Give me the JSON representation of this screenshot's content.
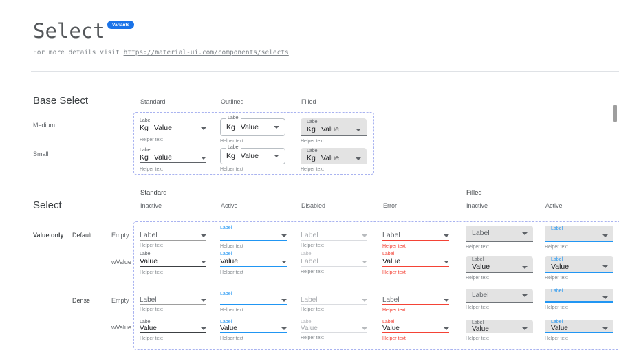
{
  "header": {
    "title": "Select",
    "badge": "Variants",
    "intro_prefix": "For more details visit ",
    "intro_link": "https://material-ui.com/components/selects"
  },
  "colors": {
    "accent_blue": "#2196f3",
    "badge_blue": "#1a73e8",
    "error_red": "#f44336",
    "filled_bg": "#e3e3e3",
    "dashed_border": "#a9b3f0",
    "text_dark": "#202124",
    "text_gray": "#5f6368",
    "helper_gray": "#80868b"
  },
  "base_select": {
    "heading": "Base Select",
    "column_headers": [
      "Standard",
      "Outlined",
      "Filled"
    ],
    "row_headers": [
      "Medium",
      "Small"
    ],
    "label": "Label",
    "adornment": "Kg",
    "value": "Value",
    "helper": "Helper text"
  },
  "select_matrix": {
    "heading": "Select",
    "group_headers": [
      "Standard",
      "Filled"
    ],
    "column_headers": [
      "Inactive",
      "Active",
      "Disabled",
      "Error",
      "Inactive",
      "Active"
    ],
    "row_labels": [
      {
        "text": "Value only",
        "col": 0,
        "row": 0,
        "emph": "bold"
      },
      {
        "text": "Default",
        "col": 1,
        "row": 0,
        "emph": "med"
      },
      {
        "text": "Empty",
        "col": 2,
        "row": 0,
        "emph": ""
      },
      {
        "text": "wValue",
        "col": 2,
        "row": 1,
        "emph": ""
      },
      {
        "text": "Dense",
        "col": 1,
        "row": 2,
        "emph": "med"
      },
      {
        "text": "Empty",
        "col": 2,
        "row": 2,
        "emph": ""
      },
      {
        "text": "wValue",
        "col": 2,
        "row": 3,
        "emph": ""
      }
    ],
    "strings": {
      "label": "Label",
      "value": "Value",
      "helper": "Helper text"
    },
    "disabled_value_by_density": {
      "default": "Label",
      "dense": "Value"
    }
  }
}
